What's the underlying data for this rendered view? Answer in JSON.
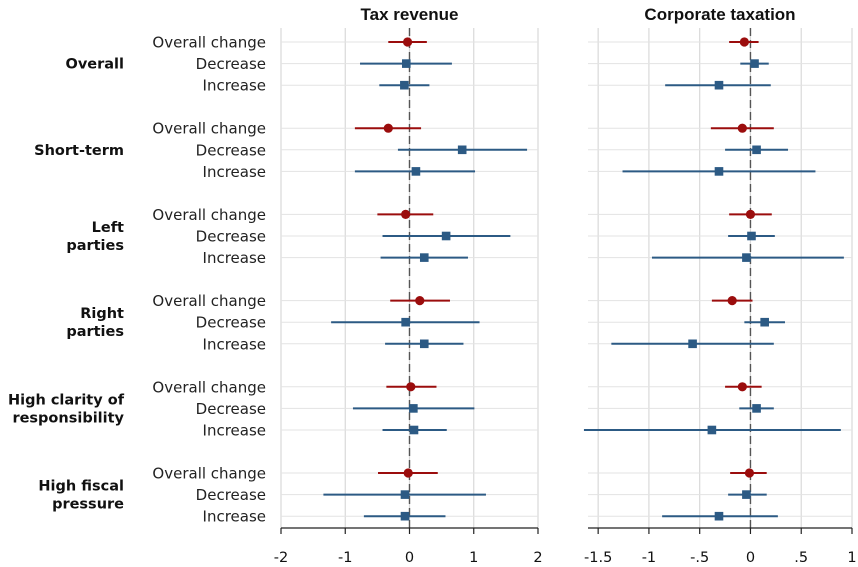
{
  "chart_data": {
    "type": "scatter",
    "variant": "coefficient plot with confidence intervals",
    "panels": [
      {
        "title": "Tax revenue",
        "xlim": [
          -2,
          2
        ],
        "xticks": [
          -2,
          -1,
          0,
          1,
          2
        ],
        "xtick_labels": [
          "-2",
          "-1",
          "0",
          "1",
          "2"
        ],
        "reference_line": 0,
        "grid": "vertical at ticks",
        "rows": [
          {
            "group": "Overall",
            "term": "Overall change",
            "estimate": -0.03,
            "ci": [
              -0.33,
              0.27
            ]
          },
          {
            "group": "Overall",
            "term": "Decrease",
            "estimate": -0.05,
            "ci": [
              -0.77,
              0.66
            ]
          },
          {
            "group": "Overall",
            "term": "Increase",
            "estimate": -0.08,
            "ci": [
              -0.47,
              0.31
            ]
          },
          {
            "group": "Short-term",
            "term": "Overall change",
            "estimate": -0.33,
            "ci": [
              -0.85,
              0.18
            ]
          },
          {
            "group": "Short-term",
            "term": "Decrease",
            "estimate": 0.82,
            "ci": [
              -0.18,
              1.83
            ]
          },
          {
            "group": "Short-term",
            "term": "Increase",
            "estimate": 0.1,
            "ci": [
              -0.85,
              1.02
            ]
          },
          {
            "group": "Left parties",
            "term": "Overall change",
            "estimate": -0.06,
            "ci": [
              -0.5,
              0.37
            ]
          },
          {
            "group": "Left parties",
            "term": "Decrease",
            "estimate": 0.57,
            "ci": [
              -0.42,
              1.57
            ]
          },
          {
            "group": "Left parties",
            "term": "Increase",
            "estimate": 0.23,
            "ci": [
              -0.45,
              0.91
            ]
          },
          {
            "group": "Right parties",
            "term": "Overall change",
            "estimate": 0.16,
            "ci": [
              -0.3,
              0.63
            ]
          },
          {
            "group": "Right parties",
            "term": "Decrease",
            "estimate": -0.06,
            "ci": [
              -1.22,
              1.09
            ]
          },
          {
            "group": "Right parties",
            "term": "Increase",
            "estimate": 0.23,
            "ci": [
              -0.38,
              0.84
            ]
          },
          {
            "group": "High clarity of responsibility",
            "term": "Overall change",
            "estimate": 0.02,
            "ci": [
              -0.36,
              0.42
            ]
          },
          {
            "group": "High clarity of responsibility",
            "term": "Decrease",
            "estimate": 0.06,
            "ci": [
              -0.88,
              1.01
            ]
          },
          {
            "group": "High clarity of responsibility",
            "term": "Increase",
            "estimate": 0.07,
            "ci": [
              -0.42,
              0.58
            ]
          },
          {
            "group": "High fiscal pressure",
            "term": "Overall change",
            "estimate": -0.02,
            "ci": [
              -0.49,
              0.44
            ]
          },
          {
            "group": "High fiscal pressure",
            "term": "Decrease",
            "estimate": -0.07,
            "ci": [
              -1.34,
              1.19
            ]
          },
          {
            "group": "High fiscal pressure",
            "term": "Increase",
            "estimate": -0.07,
            "ci": [
              -0.71,
              0.56
            ]
          }
        ]
      },
      {
        "title": "Corporate taxation",
        "xlim": [
          -1.6,
          1
        ],
        "xticks": [
          -1.5,
          -1,
          -0.5,
          0,
          0.5,
          1
        ],
        "xtick_labels": [
          "-1.5",
          "-1",
          "-.5",
          "0",
          ".5",
          "1"
        ],
        "reference_line": 0,
        "grid": "vertical at ticks",
        "rows": [
          {
            "group": "Overall",
            "term": "Overall change",
            "estimate": -0.06,
            "ci": [
              -0.21,
              0.08
            ]
          },
          {
            "group": "Overall",
            "term": "Decrease",
            "estimate": 0.04,
            "ci": [
              -0.1,
              0.18
            ]
          },
          {
            "group": "Overall",
            "term": "Increase",
            "estimate": -0.31,
            "ci": [
              -0.84,
              0.2
            ]
          },
          {
            "group": "Short-term",
            "term": "Overall change",
            "estimate": -0.08,
            "ci": [
              -0.39,
              0.23
            ]
          },
          {
            "group": "Short-term",
            "term": "Decrease",
            "estimate": 0.06,
            "ci": [
              -0.25,
              0.37
            ]
          },
          {
            "group": "Short-term",
            "term": "Increase",
            "estimate": -0.31,
            "ci": [
              -1.26,
              0.64
            ]
          },
          {
            "group": "Left parties",
            "term": "Overall change",
            "estimate": 0.0,
            "ci": [
              -0.21,
              0.21
            ]
          },
          {
            "group": "Left parties",
            "term": "Decrease",
            "estimate": 0.01,
            "ci": [
              -0.22,
              0.24
            ]
          },
          {
            "group": "Left parties",
            "term": "Increase",
            "estimate": -0.04,
            "ci": [
              -0.97,
              0.92
            ]
          },
          {
            "group": "Right parties",
            "term": "Overall change",
            "estimate": -0.18,
            "ci": [
              -0.38,
              0.02
            ]
          },
          {
            "group": "Right parties",
            "term": "Decrease",
            "estimate": 0.14,
            "ci": [
              -0.06,
              0.34
            ]
          },
          {
            "group": "Right parties",
            "term": "Increase",
            "estimate": -0.57,
            "ci": [
              -1.37,
              0.23
            ]
          },
          {
            "group": "High clarity of responsibility",
            "term": "Overall change",
            "estimate": -0.08,
            "ci": [
              -0.25,
              0.11
            ]
          },
          {
            "group": "High clarity of responsibility",
            "term": "Decrease",
            "estimate": 0.06,
            "ci": [
              -0.11,
              0.23
            ]
          },
          {
            "group": "High clarity of responsibility",
            "term": "Increase",
            "estimate": -0.38,
            "ci": [
              -1.64,
              0.89
            ]
          },
          {
            "group": "High fiscal pressure",
            "term": "Overall change",
            "estimate": -0.01,
            "ci": [
              -0.2,
              0.16
            ]
          },
          {
            "group": "High fiscal pressure",
            "term": "Decrease",
            "estimate": -0.04,
            "ci": [
              -0.22,
              0.16
            ]
          },
          {
            "group": "High fiscal pressure",
            "term": "Increase",
            "estimate": -0.31,
            "ci": [
              -0.87,
              0.27
            ]
          }
        ]
      }
    ],
    "groups": [
      {
        "lines": [
          "Overall"
        ]
      },
      {
        "lines": [
          "Short-term"
        ]
      },
      {
        "lines": [
          "Left",
          "parties"
        ]
      },
      {
        "lines": [
          "Right",
          "parties"
        ]
      },
      {
        "lines": [
          "High clarity of",
          "responsibility"
        ]
      },
      {
        "lines": [
          "High fiscal",
          "pressure"
        ]
      }
    ],
    "row_labels": [
      "Overall change",
      "Decrease",
      "Increase"
    ],
    "marker_styles": {
      "Overall change": {
        "shape": "circle",
        "color": "#9b0d0d"
      },
      "Decrease": {
        "shape": "square",
        "color": "#2c5a84"
      },
      "Increase": {
        "shape": "square",
        "color": "#2c5a84"
      }
    },
    "colors": {
      "overall_change": "#9b0d0d",
      "decrease_increase": "#2c5a84",
      "grid": "#d9d9d9",
      "reference_line": "#555555"
    }
  }
}
